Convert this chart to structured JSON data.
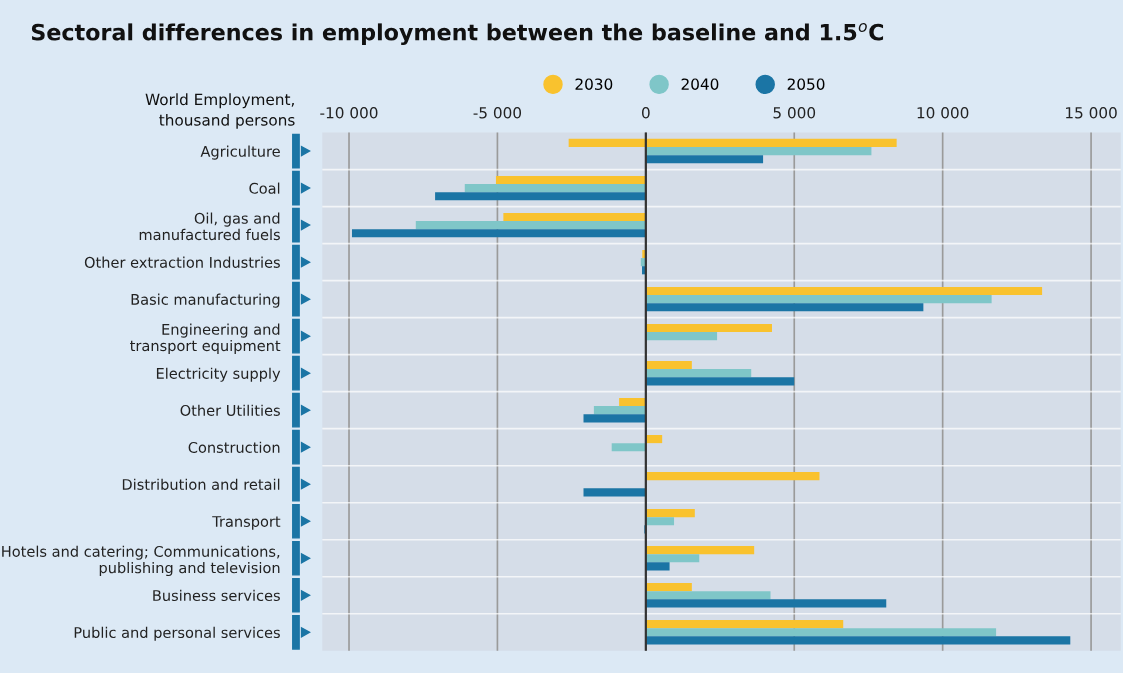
{
  "chart_data": {
    "type": "bar",
    "orientation": "horizontal",
    "title": "Sectoral differences in employment between the baseline and 1.5$^{o}$C",
    "ylabel": "World Employment,\nthousand persons",
    "categories": [
      "Agriculture",
      "Coal",
      "Oil, gas and\nmanufactured fuels",
      "Other extraction Industries",
      "Basic manufacturing",
      "Engineering and\ntransport equipment",
      "Electricity supply",
      "Other Utilities",
      "Construction",
      "Distribution and retail",
      "Transport",
      "Hotels and catering; Communications,\npublishing and television",
      "Business services",
      "Public and personal services"
    ],
    "series": [
      {
        "name": "2030",
        "color": "#f9c22e",
        "base": [
          -2600,
          0,
          0,
          0,
          0,
          0,
          0,
          0,
          0,
          0,
          0,
          0,
          0,
          0
        ],
        "values": [
          11050,
          -5050,
          -4800,
          -120,
          13350,
          4250,
          1550,
          -900,
          550,
          5850,
          1650,
          3650,
          1550,
          6650
        ]
      },
      {
        "name": "2040",
        "color": "#7fc6c8",
        "values": [
          7600,
          -6100,
          -7750,
          -170,
          11650,
          2400,
          3550,
          -1750,
          -1150,
          null,
          950,
          1800,
          4200,
          11800
        ]
      },
      {
        "name": "2050",
        "color": "#1b75a5",
        "values": [
          3950,
          -7100,
          -9900,
          -130,
          9350,
          null,
          5000,
          -2100,
          null,
          -2100,
          -50,
          800,
          8100,
          14300
        ]
      }
    ],
    "xlim": [
      -10900,
      16000
    ],
    "xticks": [
      {
        "value": -10000,
        "label": "-10 000"
      },
      {
        "value": -5000,
        "label": "-5 000"
      },
      0,
      {
        "value": 5000,
        "label": "5 000"
      },
      {
        "value": 10000,
        "label": "10 000"
      },
      {
        "value": 15000,
        "label": "15 000"
      }
    ],
    "ref_lines": [
      {
        "axis": "x",
        "value": 0,
        "label": null,
        "color": "#333333"
      }
    ],
    "grid": "x",
    "legend": "top",
    "marker": "circle"
  }
}
